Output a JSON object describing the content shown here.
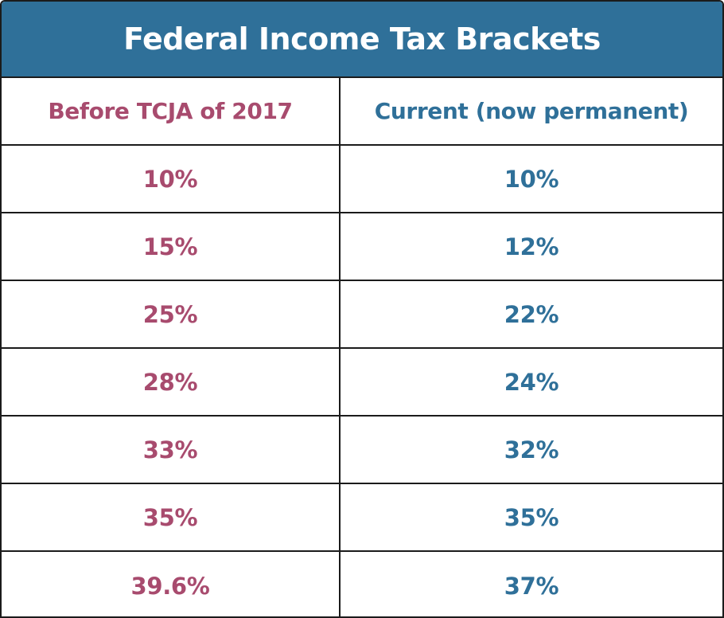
{
  "title": "Federal Income Tax Brackets",
  "colors": {
    "title_bar": "#2f7099",
    "before_text": "#a84b6e",
    "current_text": "#2f7099",
    "border": "#1b1b1b"
  },
  "chart_data": {
    "type": "table",
    "title": "Federal Income Tax Brackets",
    "columns": [
      "Before TCJA of 2017",
      "Current (now permanent)"
    ],
    "rows": [
      [
        "10%",
        "10%"
      ],
      [
        "15%",
        "12%"
      ],
      [
        "25%",
        "22%"
      ],
      [
        "28%",
        "24%"
      ],
      [
        "33%",
        "32%"
      ],
      [
        "35%",
        "35%"
      ],
      [
        "39.6%",
        "37%"
      ]
    ]
  }
}
